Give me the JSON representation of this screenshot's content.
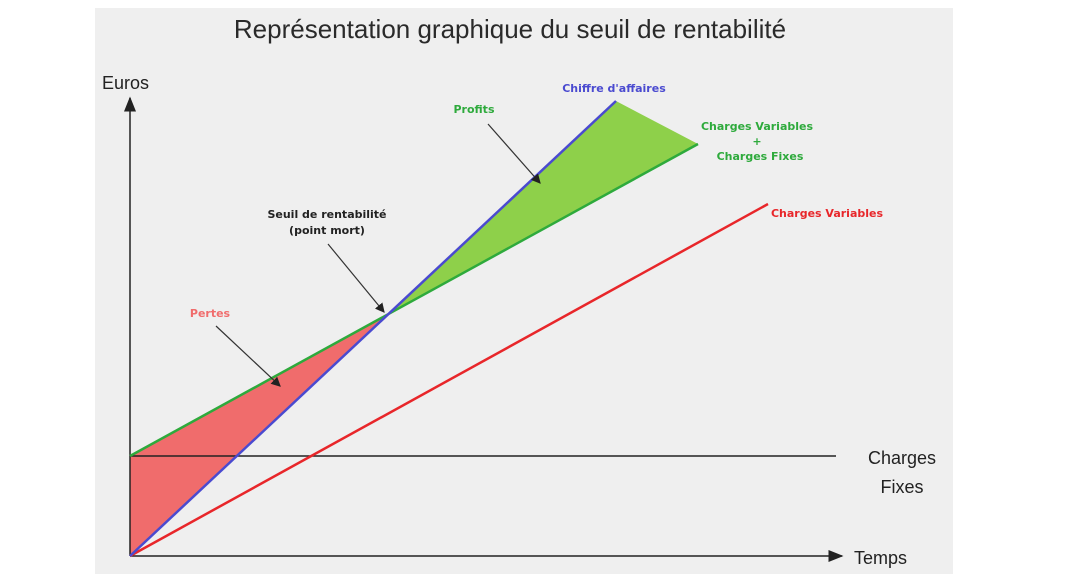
{
  "title": "Représentation graphique du seuil de rentabilité",
  "axes": {
    "y_label": "Euros",
    "x_label": "Temps",
    "fixed_costs_line_1": "Charges",
    "fixed_costs_line_2": "Fixes"
  },
  "lines": {
    "revenue": {
      "label": "Chiffre d'affaires",
      "color": "#4a4ad0"
    },
    "total_costs": {
      "label_1": "Charges Variables",
      "label_2": "+",
      "label_3": "Charges Fixes",
      "color": "#2eaa3c"
    },
    "variable_costs": {
      "label": "Charges Variables",
      "color": "#e8262a"
    }
  },
  "regions": {
    "profits": {
      "label": "Profits",
      "color": "#8ed04a"
    },
    "losses": {
      "label": "Pertes",
      "color": "#f06c6c"
    }
  },
  "break_even": {
    "label_1": "Seuil de rentabilité",
    "label_2": "(point mort)"
  }
}
